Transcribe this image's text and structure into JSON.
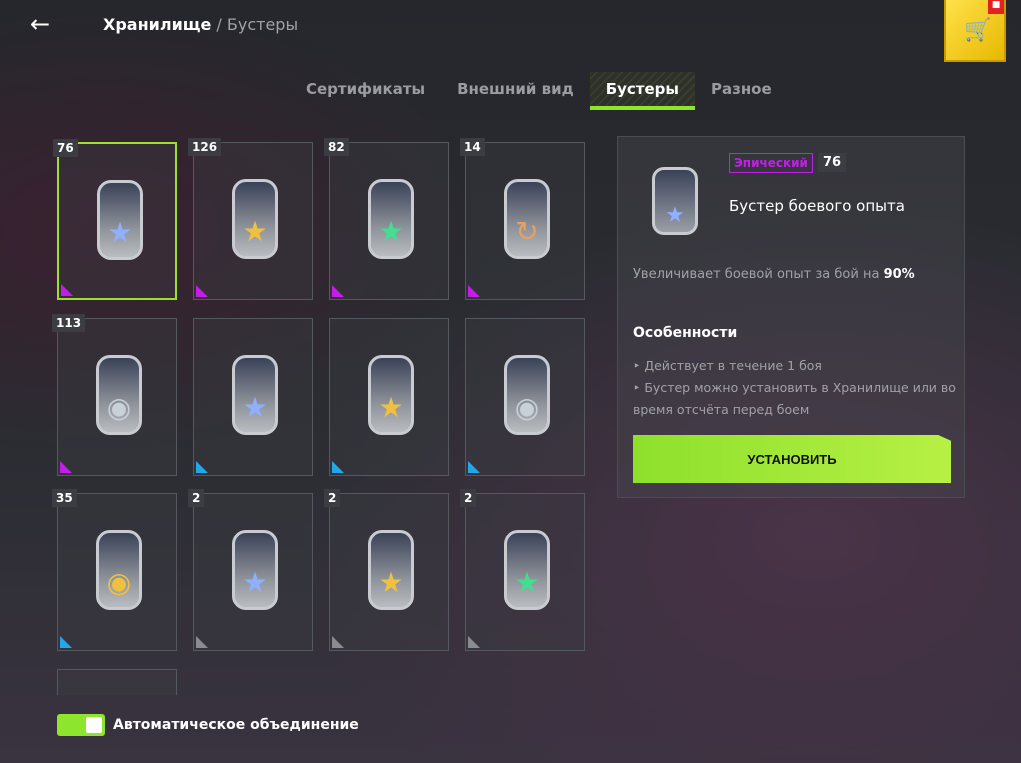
{
  "header": {
    "back_icon": "arrow-left-icon",
    "title": "Хранилище",
    "separator": " / ",
    "subtitle": "Бустеры",
    "shop_icon": "cart-icon",
    "gift_icon": "gift-icon"
  },
  "tabs": [
    {
      "label": "Сертификаты"
    },
    {
      "label": "Внешний вид"
    },
    {
      "label": "Бустеры",
      "active": true
    },
    {
      "label": "Разное"
    }
  ],
  "colors": {
    "accent": "#8de52e",
    "epic": "#c21ee8",
    "rare": "#22a8e8",
    "common": "#8a8c90"
  },
  "boosters": [
    {
      "count": "76",
      "rarity": "epic",
      "icon": "star",
      "star": "#8fb0ff",
      "selected": true
    },
    {
      "count": "126",
      "rarity": "epic",
      "icon": "star",
      "star": "#f0c040"
    },
    {
      "count": "82",
      "rarity": "epic",
      "icon": "star",
      "star": "#40e090"
    },
    {
      "count": "14",
      "rarity": "epic",
      "icon": "refresh",
      "star": "#e8a060"
    },
    {
      "count": "113",
      "rarity": "epic",
      "icon": "credits",
      "star": "#c8d0d8"
    },
    {
      "count": "",
      "rarity": "rare",
      "icon": "star",
      "star": "#8fb0ff"
    },
    {
      "count": "",
      "rarity": "rare",
      "icon": "star",
      "star": "#f0c040"
    },
    {
      "count": "",
      "rarity": "rare",
      "icon": "credits",
      "star": "#c8d0d8"
    },
    {
      "count": "35",
      "rarity": "rare",
      "icon": "credits",
      "star": "#f0c040"
    },
    {
      "count": "2",
      "rarity": "common",
      "icon": "star",
      "star": "#8fb0ff"
    },
    {
      "count": "2",
      "rarity": "common",
      "icon": "star",
      "star": "#f0c040"
    },
    {
      "count": "2",
      "rarity": "common",
      "icon": "star",
      "star": "#40e090"
    }
  ],
  "detail": {
    "rarity": "Эпический",
    "count": "76",
    "name": "Бустер боевого опыта",
    "desc": "Увеличивает боевой опыт за бой на ",
    "desc_value": "90%",
    "features_title": "Особенности",
    "features": [
      "‣ Действует в течение 1 боя",
      "‣ Бустер можно установить в Хранилище или во время отсчёта перед боем"
    ],
    "install_label": "УСТАНОВИТЬ"
  },
  "auto_merge": {
    "label": "Автоматическое объединение",
    "on": true
  }
}
